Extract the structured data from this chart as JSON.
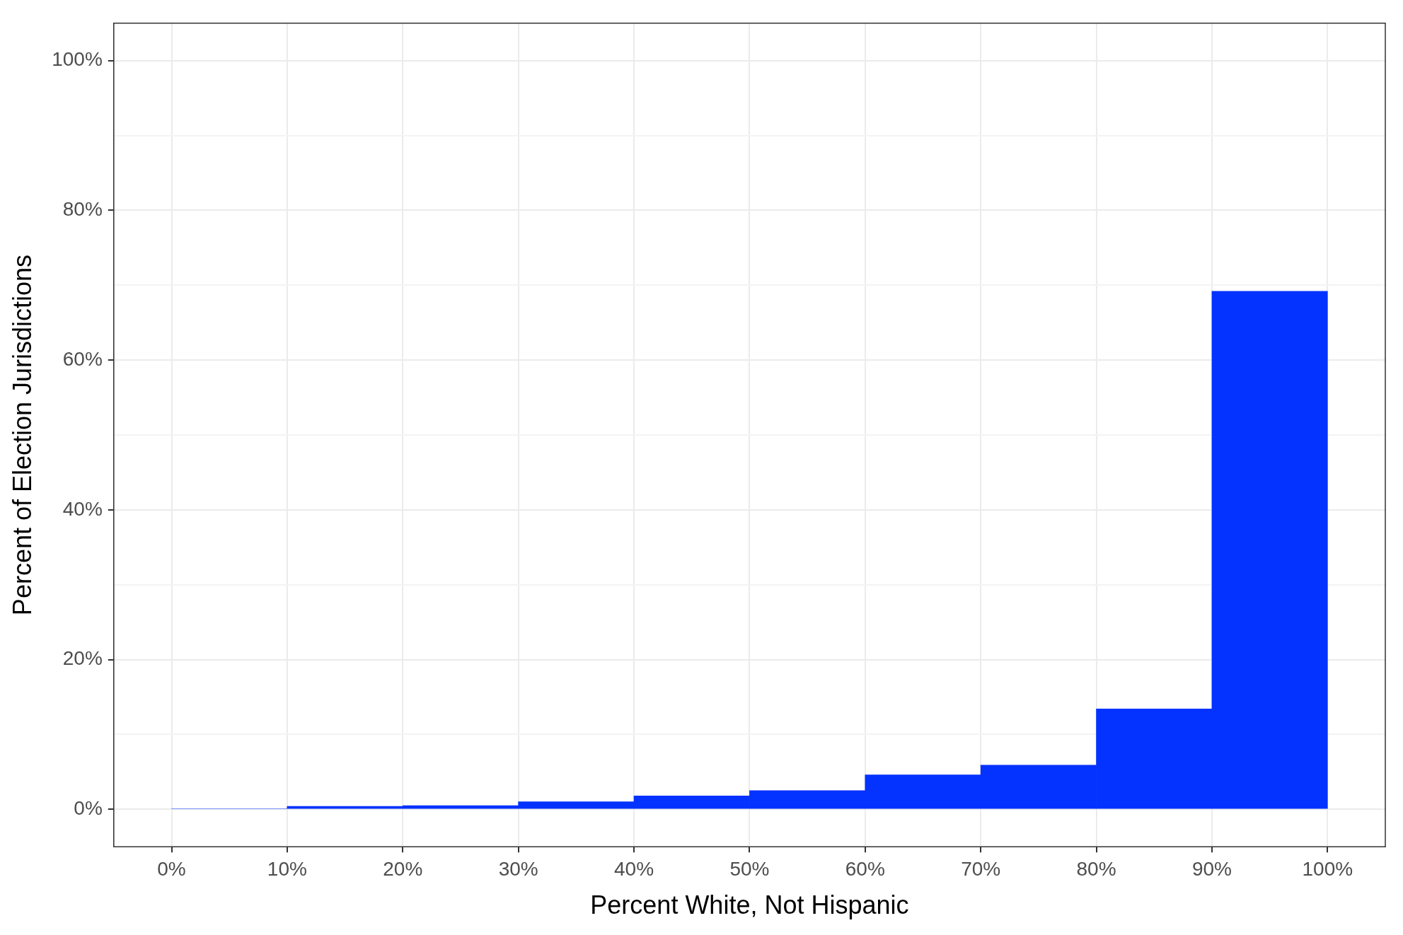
{
  "chart_data": {
    "type": "histogram",
    "xlabel": "Percent White, Not Hispanic",
    "ylabel": "Percent of Election Jurisdictions",
    "bins": [
      0,
      10,
      20,
      30,
      40,
      50,
      60,
      70,
      80,
      90,
      100
    ],
    "values": [
      0.1,
      0.4,
      0.5,
      1.0,
      1.8,
      2.5,
      4.6,
      5.9,
      13.4,
      69.2
    ],
    "color": "#0432ff",
    "xlim": [
      -5,
      105
    ],
    "ylim": [
      -5,
      105
    ],
    "xticks": [
      {
        "value": 0,
        "label": "0%"
      },
      {
        "value": 10,
        "label": "10%"
      },
      {
        "value": 20,
        "label": "20%"
      },
      {
        "value": 30,
        "label": "30%"
      },
      {
        "value": 40,
        "label": "40%"
      },
      {
        "value": 50,
        "label": "50%"
      },
      {
        "value": 60,
        "label": "60%"
      },
      {
        "value": 70,
        "label": "70%"
      },
      {
        "value": 80,
        "label": "80%"
      },
      {
        "value": 90,
        "label": "90%"
      },
      {
        "value": 100,
        "label": "100%"
      }
    ],
    "yticks": [
      {
        "value": 0,
        "label": "0%"
      },
      {
        "value": 10,
        "label": null
      },
      {
        "value": 20,
        "label": "20%"
      },
      {
        "value": 30,
        "label": null
      },
      {
        "value": 40,
        "label": "40%"
      },
      {
        "value": 50,
        "label": null
      },
      {
        "value": 60,
        "label": "60%"
      },
      {
        "value": 70,
        "label": null
      },
      {
        "value": 80,
        "label": "80%"
      },
      {
        "value": 90,
        "label": null
      },
      {
        "value": 100,
        "label": "100%"
      }
    ],
    "grid": true,
    "legend": false
  }
}
